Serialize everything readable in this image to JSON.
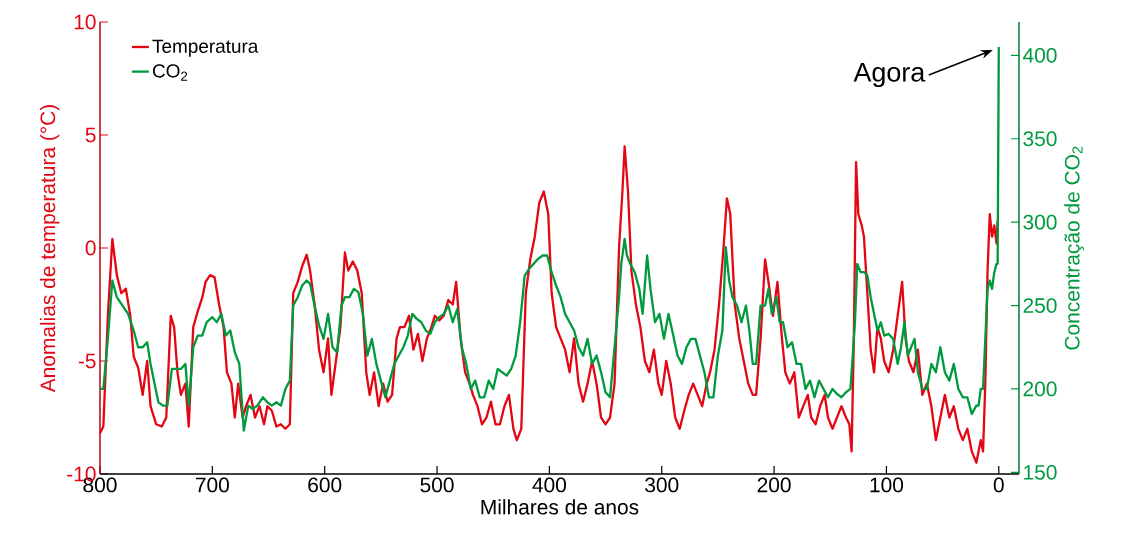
{
  "chart_data": {
    "type": "line",
    "xlabel": "Milhares de anos",
    "ylabel": "Anomalias de temperatura (°C)",
    "y2label": "Concentração de CO$_{2}$",
    "xlim": [
      800,
      -18
    ],
    "xticks": [
      800,
      700,
      600,
      500,
      400,
      300,
      200,
      100,
      0
    ],
    "ylim": [
      -10,
      10
    ],
    "yticks": [
      -10,
      -5,
      0,
      5,
      10
    ],
    "y2lim": [
      149,
      420
    ],
    "y2ticks": [
      150,
      200,
      250,
      300,
      350,
      400
    ],
    "legend": "top left",
    "marker": "none",
    "annotations": [
      "Agora"
    ],
    "series": [
      {
        "name": "Temperatura",
        "color": "#e30613",
        "x": [
          800,
          797,
          793,
          789,
          785,
          781,
          777,
          773,
          770,
          766,
          762,
          758,
          755,
          750,
          745,
          741,
          737,
          734,
          731,
          728,
          724,
          721,
          717,
          713,
          709,
          706,
          702,
          698,
          694,
          690,
          687,
          683,
          680,
          677,
          673,
          670,
          666,
          662,
          658,
          654,
          651,
          647,
          643,
          639,
          635,
          631,
          628,
          624,
          620,
          616,
          613,
          609,
          605,
          601,
          597,
          594,
          590,
          586,
          582,
          579,
          575,
          571,
          567,
          563,
          560,
          556,
          552,
          548,
          544,
          540,
          536,
          533,
          529,
          525,
          521,
          517,
          513,
          509,
          505,
          502,
          498,
          494,
          490,
          486,
          483,
          479,
          475,
          471,
          468,
          464,
          460,
          456,
          452,
          448,
          444,
          440,
          436,
          432,
          429,
          425,
          421,
          417,
          413,
          409,
          405,
          401,
          398,
          394,
          390,
          386,
          382,
          378,
          374,
          370,
          366,
          362,
          358,
          354,
          350,
          346,
          342,
          338,
          335,
          333,
          330,
          327,
          323,
          319,
          315,
          311,
          307,
          303,
          300,
          296,
          292,
          288,
          284,
          280,
          276,
          272,
          268,
          264,
          260,
          257,
          253,
          249,
          245,
          242,
          239,
          235,
          231,
          227,
          223,
          219,
          216,
          212,
          208,
          205,
          201,
          197,
          193,
          190,
          186,
          182,
          178,
          174,
          170,
          167,
          163,
          159,
          155,
          152,
          148,
          144,
          140,
          136,
          133,
          131,
          129,
          128,
          127,
          125,
          122,
          120,
          117,
          114,
          111,
          108,
          105,
          102,
          98,
          94,
          90,
          86,
          83,
          80,
          76,
          72,
          68,
          64,
          60,
          56,
          52,
          48,
          44,
          40,
          36,
          32,
          28,
          24,
          20,
          16,
          14,
          12,
          10,
          8,
          6,
          4,
          2,
          1
        ],
        "values": [
          -8.2,
          -7.9,
          -3,
          0.4,
          -1.2,
          -2.0,
          -1.8,
          -3.0,
          -4.8,
          -5.3,
          -6.5,
          -5.0,
          -7.0,
          -7.8,
          -7.9,
          -7.5,
          -3.0,
          -3.5,
          -5.5,
          -6.5,
          -6.0,
          -7.9,
          -3.5,
          -2.8,
          -2.2,
          -1.5,
          -1.2,
          -1.3,
          -2.5,
          -3.5,
          -5.5,
          -6.0,
          -7.5,
          -6.0,
          -7.5,
          -7.0,
          -6.5,
          -7.5,
          -7.0,
          -7.8,
          -7.0,
          -7.2,
          -7.9,
          -7.8,
          -8.0,
          -7.8,
          -2.0,
          -1.5,
          -0.8,
          -0.3,
          -1.0,
          -2.5,
          -4.5,
          -5.5,
          -4.0,
          -6.5,
          -5.0,
          -3.5,
          -0.2,
          -1.0,
          -0.6,
          -1.0,
          -2.0,
          -5.5,
          -6.5,
          -5.5,
          -7.0,
          -6.0,
          -6.8,
          -6.5,
          -4.0,
          -3.5,
          -3.5,
          -3.0,
          -4.5,
          -3.8,
          -5.0,
          -4.0,
          -3.5,
          -3.0,
          -3.2,
          -3.0,
          -2.3,
          -2.5,
          -1.5,
          -4.0,
          -5.5,
          -6.0,
          -6.5,
          -7.0,
          -7.8,
          -7.5,
          -6.8,
          -7.8,
          -7.8,
          -7.0,
          -6.5,
          -8.0,
          -8.5,
          -8.0,
          -2.0,
          -0.5,
          0.5,
          2.0,
          2.5,
          1.5,
          -2.0,
          -3.5,
          -4.0,
          -4.5,
          -5.5,
          -4.0,
          -6.0,
          -6.8,
          -6.0,
          -5.0,
          -6.0,
          -7.5,
          -7.8,
          -7.5,
          -6.0,
          0.0,
          2.5,
          4.5,
          2.5,
          -1.0,
          -2.5,
          -3.5,
          -5.0,
          -5.5,
          -4.5,
          -6.0,
          -6.5,
          -5.0,
          -6.0,
          -7.5,
          -8.0,
          -7.2,
          -6.5,
          -6.0,
          -6.5,
          -7.0,
          -6.0,
          -5.5,
          -4.5,
          -2.5,
          0.0,
          2.2,
          1.5,
          -2.5,
          -4.0,
          -5.0,
          -6.0,
          -6.5,
          -6.5,
          -4.0,
          -0.5,
          -1.5,
          -3.0,
          -1.5,
          -4.0,
          -5.5,
          -6.0,
          -5.5,
          -7.5,
          -7.0,
          -6.5,
          -7.5,
          -7.8,
          -7.0,
          -6.5,
          -7.5,
          -8.0,
          -7.5,
          -7.0,
          -7.5,
          -7.8,
          -9.0,
          -4.0,
          0.0,
          3.8,
          1.5,
          1.0,
          0.5,
          -2.0,
          -4.5,
          -5.5,
          -3.5,
          -4.0,
          -5.0,
          -5.5,
          -4.5,
          -3.0,
          -1.5,
          -4.0,
          -5.0,
          -5.5,
          -4.5,
          -6.5,
          -6.0,
          -7.0,
          -8.5,
          -7.5,
          -6.5,
          -7.5,
          -7.0,
          -8.0,
          -8.5,
          -8.0,
          -9.0,
          -9.5,
          -8.5,
          -9.0,
          -6.0,
          -1.0,
          1.5,
          0.5,
          1.0,
          0.2,
          1.2
        ]
      },
      {
        "name": "CO$_{2}$",
        "color": "#009a3e",
        "axis": "y2",
        "x": [
          800,
          797,
          793,
          789,
          785,
          780,
          775,
          770,
          766,
          762,
          758,
          755,
          752,
          748,
          744,
          740,
          736,
          732,
          728,
          724,
          721,
          717,
          713,
          709,
          705,
          700,
          696,
          692,
          688,
          684,
          680,
          676,
          672,
          668,
          664,
          660,
          655,
          651,
          647,
          643,
          639,
          635,
          631,
          628,
          624,
          620,
          616,
          613,
          609,
          605,
          601,
          597,
          593,
          589,
          585,
          582,
          578,
          574,
          570,
          566,
          562,
          558,
          554,
          550,
          546,
          542,
          538,
          534,
          530,
          526,
          522,
          518,
          514,
          510,
          506,
          502,
          498,
          494,
          490,
          486,
          482,
          478,
          474,
          470,
          466,
          462,
          458,
          454,
          450,
          446,
          442,
          438,
          434,
          430,
          426,
          422,
          418,
          414,
          410,
          406,
          402,
          398,
          394,
          390,
          386,
          382,
          378,
          374,
          370,
          366,
          362,
          358,
          354,
          350,
          346,
          342,
          338,
          336,
          333,
          331,
          328,
          324,
          320,
          317,
          313,
          310,
          306,
          302,
          298,
          294,
          290,
          286,
          282,
          278,
          274,
          270,
          266,
          262,
          258,
          254,
          250,
          246,
          243,
          240,
          237,
          233,
          229,
          225,
          222,
          219,
          216,
          212,
          208,
          205,
          202,
          198,
          195,
          192,
          188,
          184,
          180,
          176,
          172,
          168,
          164,
          160,
          156,
          152,
          148,
          144,
          140,
          136,
          132,
          128,
          126,
          123,
          120,
          117,
          114,
          111,
          108,
          105,
          102,
          98,
          94,
          90,
          87,
          84,
          81,
          78,
          75,
          72,
          68,
          64,
          60,
          56,
          52,
          48,
          44,
          40,
          36,
          32,
          28,
          24,
          20,
          18,
          16,
          14,
          12,
          10,
          8,
          6,
          4,
          2,
          1,
          0
        ],
        "values": [
          200,
          200,
          230,
          265,
          255,
          250,
          245,
          235,
          225,
          225,
          228,
          215,
          205,
          192,
          190,
          190,
          212,
          212,
          212,
          215,
          190,
          225,
          232,
          232,
          240,
          243,
          240,
          245,
          232,
          235,
          222,
          215,
          175,
          190,
          188,
          190,
          195,
          192,
          190,
          192,
          190,
          200,
          205,
          250,
          255,
          262,
          265,
          263,
          250,
          238,
          230,
          245,
          225,
          222,
          250,
          255,
          255,
          260,
          258,
          245,
          220,
          230,
          215,
          205,
          195,
          205,
          215,
          220,
          225,
          232,
          245,
          242,
          240,
          235,
          233,
          240,
          243,
          245,
          250,
          240,
          248,
          225,
          215,
          200,
          205,
          195,
          195,
          205,
          200,
          212,
          210,
          208,
          212,
          220,
          240,
          268,
          272,
          275,
          278,
          280,
          280,
          270,
          262,
          255,
          245,
          240,
          235,
          225,
          220,
          230,
          215,
          220,
          210,
          198,
          195,
          225,
          255,
          275,
          290,
          280,
          275,
          270,
          260,
          245,
          280,
          260,
          240,
          245,
          230,
          245,
          233,
          220,
          215,
          225,
          230,
          230,
          220,
          210,
          195,
          195,
          220,
          235,
          285,
          265,
          255,
          250,
          240,
          250,
          235,
          215,
          215,
          250,
          250,
          260,
          245,
          255,
          240,
          240,
          225,
          228,
          215,
          215,
          200,
          205,
          195,
          205,
          200,
          195,
          200,
          197,
          195,
          198,
          200,
          240,
          275,
          270,
          270,
          268,
          255,
          245,
          235,
          240,
          232,
          233,
          230,
          215,
          225,
          240,
          220,
          225,
          230,
          210,
          200,
          200,
          215,
          210,
          225,
          210,
          205,
          215,
          200,
          195,
          195,
          185,
          190,
          190,
          200,
          200,
          230,
          260,
          265,
          260,
          270,
          275,
          275,
          405
        ]
      }
    ]
  }
}
